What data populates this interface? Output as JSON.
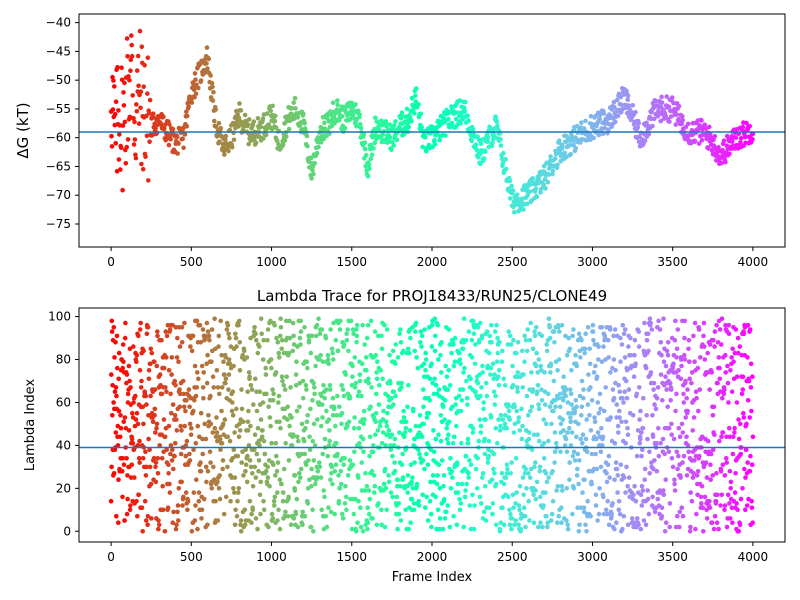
{
  "chart_data": [
    {
      "type": "scatter",
      "title": "",
      "xlabel": "",
      "ylabel": "ΔG (kT)",
      "xlim": [
        -200,
        4200
      ],
      "ylim": [
        -79,
        -38.5
      ],
      "xticks": [
        0,
        500,
        1000,
        1500,
        2000,
        2500,
        3000,
        3500,
        4000
      ],
      "yticks": [
        -75,
        -70,
        -65,
        -60,
        -55,
        -50,
        -45,
        -40
      ],
      "hline": -59,
      "hline_color": "#1f77b4",
      "colormap": "rainbow",
      "marker": "dot",
      "series": [
        {
          "x": [
            0,
            25,
            50,
            75,
            100,
            125,
            150,
            175,
            200,
            250,
            300,
            350,
            400,
            450,
            500,
            550,
            600,
            650,
            700,
            750,
            800,
            850,
            900,
            950,
            1000,
            1050,
            1100,
            1150,
            1200,
            1250,
            1300,
            1350,
            1400,
            1450,
            1500,
            1550,
            1600,
            1650,
            1700,
            1750,
            1800,
            1850,
            1900,
            1950,
            2000,
            2100,
            2200,
            2300,
            2400,
            2500,
            2600,
            2700,
            2800,
            2900,
            3000,
            3100,
            3200,
            3300,
            3400,
            3500,
            3600,
            3700,
            3800,
            3900,
            4000
          ],
          "y": [
            -50,
            -62,
            -55,
            -58,
            -52,
            -48,
            -57,
            -52,
            -55,
            -58,
            -57,
            -59,
            -61,
            -60,
            -52,
            -49,
            -46,
            -57,
            -62,
            -60,
            -56,
            -59,
            -59,
            -58,
            -56,
            -61,
            -57,
            -55,
            -58,
            -66,
            -59,
            -58,
            -55,
            -57,
            -55,
            -57,
            -65,
            -58,
            -59,
            -60,
            -58,
            -57,
            -53,
            -61,
            -60,
            -57,
            -55,
            -63,
            -58,
            -71,
            -70,
            -67,
            -62,
            -60,
            -58,
            -57,
            -53,
            -60,
            -55,
            -55,
            -59,
            -59,
            -63,
            -60,
            -58.5
          ]
        }
      ]
    },
    {
      "type": "scatter",
      "title": "Lambda Trace for PROJ18433/RUN25/CLONE49",
      "xlabel": "Frame Index",
      "ylabel": "Lambda Index",
      "xlim": [
        -200,
        4200
      ],
      "ylim": [
        -5,
        104
      ],
      "xticks": [
        0,
        500,
        1000,
        1500,
        2000,
        2500,
        3000,
        3500,
        4000
      ],
      "yticks": [
        0,
        20,
        40,
        60,
        80,
        100
      ],
      "hline": 39,
      "hline_color": "#1f77b4",
      "colormap": "rainbow",
      "marker": "dot",
      "series": [
        {
          "x": [
            0,
            50,
            100,
            150,
            200,
            300,
            400,
            500,
            600,
            700,
            800,
            900,
            1000,
            1100,
            1200,
            1300,
            1400,
            1500,
            1600,
            1700,
            1800,
            1900,
            2000,
            2100,
            2200,
            2300,
            2400,
            2500,
            2600,
            2700,
            2800,
            2900,
            3000,
            3100,
            3200,
            3300,
            3400,
            3500,
            3600,
            3700,
            3800,
            3900,
            4000
          ],
          "y": [
            40,
            60,
            30,
            70,
            50,
            45,
            55,
            40,
            60,
            50,
            45,
            50,
            55,
            45,
            50,
            45,
            40,
            55,
            60,
            35,
            40,
            50,
            60,
            55,
            70,
            45,
            60,
            85,
            30,
            25,
            35,
            40,
            45,
            50,
            80,
            45,
            40,
            55,
            75,
            70,
            30,
            35,
            40
          ]
        }
      ]
    }
  ]
}
